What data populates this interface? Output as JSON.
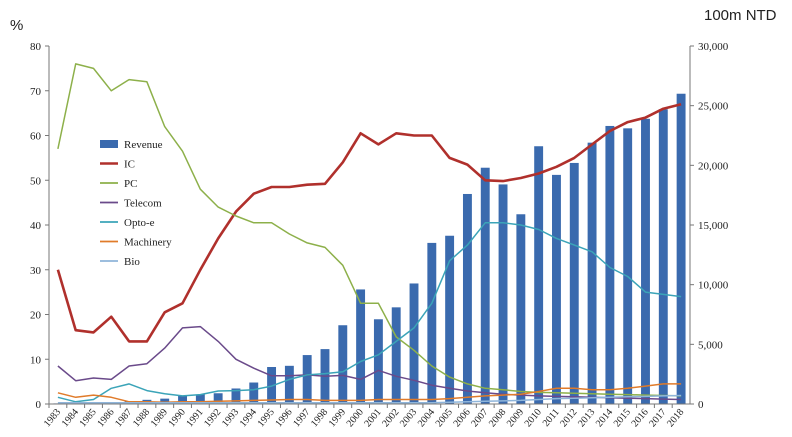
{
  "chart_data": {
    "type": "bar",
    "title": "",
    "left_axis": {
      "unit_label": "%",
      "range": [
        0,
        80
      ],
      "ticks": [
        0,
        10,
        20,
        30,
        40,
        50,
        60,
        70,
        80
      ]
    },
    "right_axis": {
      "unit_label": "100m NTD",
      "range": [
        0,
        30000
      ],
      "ticks": [
        0,
        5000,
        10000,
        15000,
        20000,
        25000,
        30000
      ]
    },
    "x_axis": {
      "label": "",
      "categories": [
        "1983",
        "1984",
        "1985",
        "1986",
        "1987",
        "1988",
        "1989",
        "1990",
        "1991",
        "1992",
        "1993",
        "1994",
        "1995",
        "1996",
        "1997",
        "1998",
        "1999",
        "2000",
        "2001",
        "2002",
        "2003",
        "2004",
        "2005",
        "2006",
        "2007",
        "2008",
        "2009",
        "2010",
        "2011",
        "2012",
        "2013",
        "2014",
        "2015",
        "2016",
        "2017",
        "2018"
      ]
    },
    "legend": {
      "position": "left-inside",
      "entries": [
        "Revenue",
        "IC",
        "PC",
        "Telecom",
        "Opto-e",
        "Machinery",
        "Bio"
      ]
    },
    "series": [
      {
        "name": "Revenue",
        "kind": "bar",
        "axis": "right",
        "color": "#3A6AAE",
        "values": [
          50,
          60,
          100,
          150,
          250,
          350,
          450,
          700,
          800,
          900,
          1300,
          1800,
          3100,
          3200,
          4100,
          4600,
          6600,
          9600,
          7100,
          8100,
          10100,
          13500,
          14100,
          17600,
          19800,
          18400,
          15900,
          21600,
          19200,
          20200,
          21900,
          23300,
          23100,
          23900,
          24700,
          26000
        ]
      },
      {
        "name": "IC",
        "kind": "line",
        "axis": "left",
        "color": "#B0302C",
        "values": [
          30,
          16.5,
          16,
          19.5,
          14,
          14,
          20.5,
          22.5,
          30,
          37,
          43,
          47,
          48.5,
          48.5,
          49,
          49.2,
          54,
          60.5,
          58,
          60.5,
          60,
          60,
          55,
          53.5,
          50,
          49.8,
          50.5,
          51.5,
          53,
          55,
          58,
          61,
          63,
          64,
          66,
          67
        ]
      },
      {
        "name": "PC",
        "kind": "line",
        "axis": "left",
        "color": "#8DB04A",
        "values": [
          57,
          76,
          75,
          70,
          72.5,
          72,
          62,
          56.5,
          48,
          44,
          42,
          40.5,
          40.5,
          38,
          36,
          35,
          31,
          22.5,
          22.5,
          15,
          12,
          8.5,
          6,
          4.5,
          3.5,
          3.2,
          2.8,
          2.6,
          2.5,
          2.4,
          2.3,
          2.2,
          2.1,
          2.0,
          1.9,
          1.8
        ]
      },
      {
        "name": "Telecom",
        "kind": "line",
        "axis": "left",
        "color": "#6A4A8A",
        "values": [
          8.5,
          5.2,
          5.8,
          5.5,
          8.5,
          9,
          12.5,
          17,
          17.3,
          14,
          10,
          8,
          6.3,
          6.3,
          6.5,
          6.2,
          6.4,
          5.5,
          7.5,
          6.2,
          5.3,
          4.2,
          3.5,
          2.9,
          2.5,
          2.2,
          2.0,
          1.8,
          1.7,
          1.6,
          1.5,
          1.4,
          1.3,
          1.2,
          1.1,
          1.0
        ]
      },
      {
        "name": "Opto-e",
        "kind": "line",
        "axis": "left",
        "color": "#3BA4B8",
        "values": [
          1.5,
          0.5,
          1,
          3.5,
          4.5,
          3,
          2.3,
          1.8,
          2.1,
          2.9,
          3,
          3.2,
          4,
          5.5,
          6.5,
          6.8,
          7.2,
          9.5,
          11,
          14,
          17,
          22.5,
          32,
          35.5,
          40.5,
          40.5,
          40,
          39,
          37,
          35.5,
          34,
          30.5,
          28.5,
          25,
          24.5,
          24
        ]
      },
      {
        "name": "Machinery",
        "kind": "line",
        "axis": "left",
        "color": "#E07B2A",
        "values": [
          2.5,
          1.5,
          2,
          1.5,
          0.5,
          0.5,
          0.4,
          0.5,
          0.5,
          0.6,
          0.7,
          0.8,
          0.9,
          1.0,
          1.0,
          0.8,
          0.8,
          0.8,
          1.0,
          1.0,
          1.0,
          1.0,
          1.2,
          1.5,
          1.8,
          2.0,
          2.2,
          2.8,
          3.5,
          3.5,
          3.2,
          3.2,
          3.5,
          4.0,
          4.5,
          4.5
        ]
      },
      {
        "name": "Bio",
        "kind": "line",
        "axis": "left",
        "color": "#8FB5DA",
        "values": [
          0.3,
          0.3,
          0.3,
          0.3,
          0.3,
          0.3,
          0.3,
          0.3,
          0.3,
          0.3,
          0.3,
          0.3,
          0.3,
          0.3,
          0.3,
          0.3,
          0.3,
          0.3,
          0.3,
          0.3,
          0.3,
          0.3,
          0.4,
          0.5,
          0.6,
          0.7,
          0.8,
          1.0,
          1.2,
          1.3,
          1.4,
          1.5,
          1.6,
          1.7,
          1.8,
          1.9
        ]
      }
    ]
  }
}
